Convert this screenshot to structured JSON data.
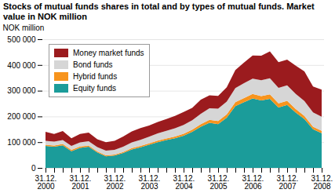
{
  "chart_data": {
    "type": "area",
    "stacked": true,
    "title": "Stocks of mutual funds shares in total and by types of  mutual funds. Market value in NOK million",
    "y_label": "NOK million",
    "categories": [
      "31.12.\n2000",
      null,
      null,
      null,
      "31.12.\n2001",
      null,
      null,
      null,
      "31.12.\n2002",
      null,
      null,
      null,
      "31.12.\n2003",
      null,
      null,
      null,
      "31.12.\n2004",
      null,
      null,
      null,
      "31.12.\n2005",
      null,
      null,
      null,
      "31.12.\n2006",
      null,
      null,
      null,
      "31.12.\n2007",
      null,
      null,
      null,
      "31.12.\n2008"
    ],
    "series": [
      {
        "name": "Equity funds",
        "color": "#1b9c9a",
        "values": [
          85000,
          82000,
          88000,
          65000,
          78000,
          82000,
          60000,
          45000,
          48000,
          58000,
          72000,
          80000,
          90000,
          100000,
          108000,
          115000,
          125000,
          140000,
          160000,
          175000,
          170000,
          195000,
          240000,
          255000,
          270000,
          262000,
          268000,
          235000,
          245000,
          215000,
          190000,
          150000,
          135000
        ]
      },
      {
        "name": "Hybrid funds",
        "color": "#f7941d",
        "values": [
          5000,
          5000,
          5000,
          5000,
          5000,
          5000,
          4000,
          4000,
          4000,
          4000,
          5000,
          5000,
          5000,
          6000,
          6000,
          7000,
          8000,
          9000,
          10000,
          12000,
          12000,
          13000,
          15000,
          16000,
          17000,
          17000,
          18000,
          16000,
          16000,
          14000,
          12000,
          10000,
          9000
        ]
      },
      {
        "name": "Bond funds",
        "color": "#d6d6d6",
        "values": [
          15000,
          15000,
          15000,
          15000,
          16000,
          17000,
          17000,
          18000,
          18000,
          20000,
          22000,
          24000,
          26000,
          28000,
          30000,
          32000,
          34000,
          36000,
          40000,
          45000,
          48000,
          50000,
          55000,
          58000,
          60000,
          62000,
          62000,
          60000,
          60000,
          58000,
          58000,
          56000,
          55000
        ]
      },
      {
        "name": "Money market funds",
        "color": "#9b1b1e",
        "values": [
          35000,
          30000,
          35000,
          30000,
          33000,
          33000,
          30000,
          33000,
          35000,
          40000,
          43000,
          46000,
          44000,
          44000,
          46000,
          48000,
          50000,
          48000,
          55000,
          50000,
          50000,
          55000,
          70000,
          80000,
          90000,
          95000,
          105000,
          100000,
          100000,
          110000,
          115000,
          100000,
          105000
        ]
      }
    ],
    "ylim": [
      0,
      500000
    ],
    "yticks": [
      0,
      {
        "value": 100000,
        "label": "100 000"
      },
      {
        "value": 200000,
        "label": "200 000"
      },
      {
        "value": 300000,
        "label": "300 000"
      },
      {
        "value": 400000,
        "label": "400 000"
      },
      {
        "value": 500000,
        "label": "500 000"
      }
    ],
    "grid": true,
    "legend": "top-left"
  }
}
